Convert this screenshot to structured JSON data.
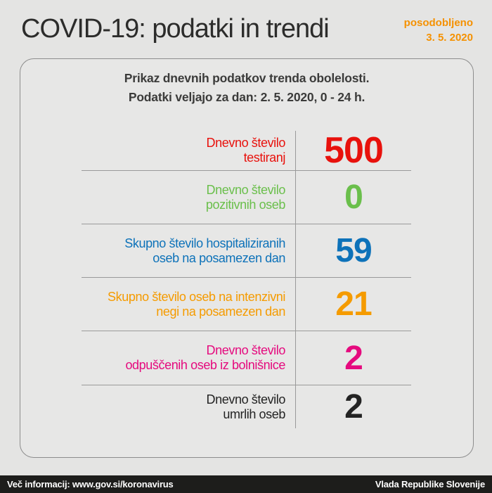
{
  "page": {
    "title": "COVID-19: podatki in trendi",
    "updated_label": "posodobljeno",
    "updated_date": "3. 5. 2020"
  },
  "card": {
    "header_line1": "Prikaz dnevnih podatkov trenda obolelosti.",
    "header_line2": "Podatki veljajo za dan: 2. 5. 2020, 0 - 24 h.",
    "rows": [
      {
        "label_line1": "Dnevno število",
        "label_line2": "testiranj",
        "value": "500",
        "color": "#e8110c"
      },
      {
        "label_line1": "Dnevno število",
        "label_line2": "pozitivnih oseb",
        "value": "0",
        "color": "#6abf4b"
      },
      {
        "label_line1": "Skupno število hospitaliziranih",
        "label_line2": "oseb na posamezen dan",
        "value": "59",
        "color": "#0d72b9"
      },
      {
        "label_line1": "Skupno število oseb na intenzivni",
        "label_line2": "negi na posamezen dan",
        "value": "21",
        "color": "#f59b00"
      },
      {
        "label_line1": "Dnevno število",
        "label_line2": "odpuščenih oseb iz bolnišnice",
        "value": "2",
        "color": "#e50a7e"
      },
      {
        "label_line1": "Dnevno število",
        "label_line2": "umrlih oseb",
        "value": "2",
        "color": "#232323"
      }
    ]
  },
  "footer": {
    "info_text": "Več informacij: www.gov.si/koronavirus",
    "org_text": "Vlada Republike Slovenije"
  },
  "colors": {
    "page_background": "#e4e4e3",
    "card_background": "#e7e7e6",
    "card_border": "#8d8d8d",
    "divider": "#9a9a9a",
    "title_text": "#2c2c2b",
    "updated_accent": "#f59100",
    "header_text": "#3b3b3a",
    "footer_background": "#1d1d1b",
    "footer_text": "#ffffff"
  },
  "chart_data": {
    "type": "table",
    "title": "COVID-19: podatki in trendi",
    "subtitle": "Prikaz dnevnih podatkov trenda obolelosti. Podatki veljajo za dan: 2. 5. 2020, 0 - 24 h.",
    "updated": "posodobljeno 3. 5. 2020",
    "categories": [
      "Dnevno število testiranj",
      "Dnevno število pozitivnih oseb",
      "Skupno število hospitaliziranih oseb na posamezen dan",
      "Skupno število oseb na intenzivni negi na posamezen dan",
      "Dnevno število odpuščenih oseb iz bolnišnice",
      "Dnevno število umrlih oseb"
    ],
    "values": [
      500,
      0,
      59,
      21,
      2,
      2
    ],
    "value_colors": [
      "#e8110c",
      "#6abf4b",
      "#0d72b9",
      "#f59b00",
      "#e50a7e",
      "#232323"
    ],
    "source_note": "Več informacij: www.gov.si/koronavirus",
    "publisher": "Vlada Republike Slovenije"
  }
}
